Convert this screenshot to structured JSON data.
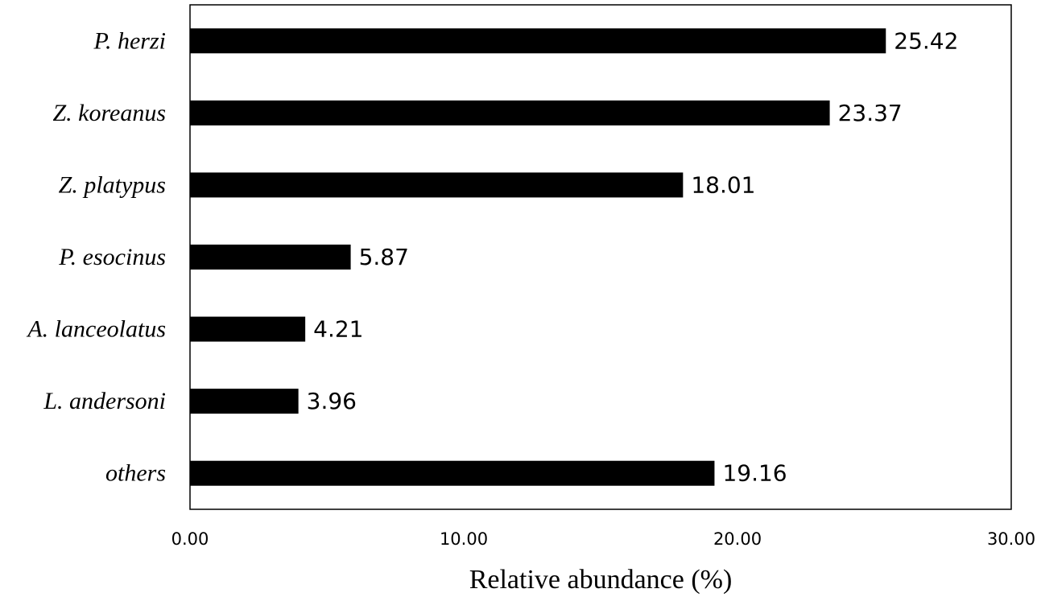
{
  "chart_data": {
    "type": "bar",
    "orientation": "horizontal",
    "categories": [
      "P. herzi",
      "Z. koreanus",
      "Z. platypus",
      "P. esocinus",
      "A. lanceolatus",
      "L. andersoni",
      "others"
    ],
    "values": [
      25.42,
      23.37,
      18.01,
      5.87,
      4.21,
      3.96,
      19.16
    ],
    "value_labels": [
      "25.42",
      "23.37",
      "18.01",
      "5.87",
      "4.21",
      "3.96",
      "19.16"
    ],
    "xlabel": "Relative abundance (%)",
    "ylabel": "",
    "title": "",
    "xlim": [
      0,
      30
    ],
    "xticks": [
      0,
      10,
      20,
      30
    ],
    "xtick_labels": [
      "0.00",
      "10.00",
      "20.00",
      "30.00"
    ],
    "grid": false,
    "bar_color": "#000000"
  }
}
